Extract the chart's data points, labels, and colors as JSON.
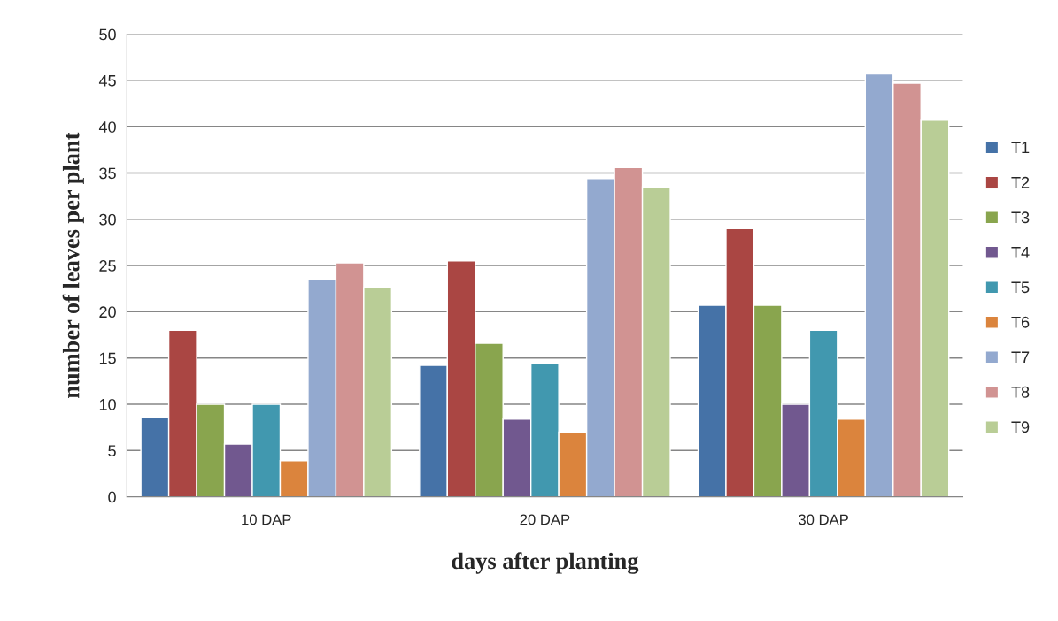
{
  "chart_data": {
    "type": "bar",
    "xlabel": "days after planting",
    "ylabel": "number of leaves per plant",
    "categories": [
      "10 DAP",
      "20 DAP",
      "30 DAP"
    ],
    "series": [
      {
        "name": "T1",
        "color": "#4572a7",
        "values": [
          8.6,
          14.2,
          20.7
        ]
      },
      {
        "name": "T2",
        "color": "#aa4643",
        "values": [
          18.0,
          25.5,
          29.0
        ]
      },
      {
        "name": "T3",
        "color": "#89a54e",
        "values": [
          10.0,
          16.6,
          20.7
        ]
      },
      {
        "name": "T4",
        "color": "#71588f",
        "values": [
          5.7,
          8.4,
          10.0
        ]
      },
      {
        "name": "T5",
        "color": "#4198af",
        "values": [
          10.0,
          14.4,
          18.0
        ]
      },
      {
        "name": "T6",
        "color": "#db843d",
        "values": [
          3.9,
          7.0,
          8.4
        ]
      },
      {
        "name": "T7",
        "color": "#93a9cf",
        "values": [
          23.5,
          34.4,
          45.7
        ]
      },
      {
        "name": "T8",
        "color": "#d19392",
        "values": [
          25.3,
          35.6,
          44.7
        ]
      },
      {
        "name": "T9",
        "color": "#b9cd96",
        "values": [
          22.6,
          33.5,
          40.7
        ]
      }
    ],
    "ylim": [
      0,
      50
    ],
    "yticks": [
      0,
      5,
      10,
      15,
      20,
      25,
      30,
      35,
      40,
      45,
      50
    ],
    "grid": "y",
    "legend": "right"
  }
}
